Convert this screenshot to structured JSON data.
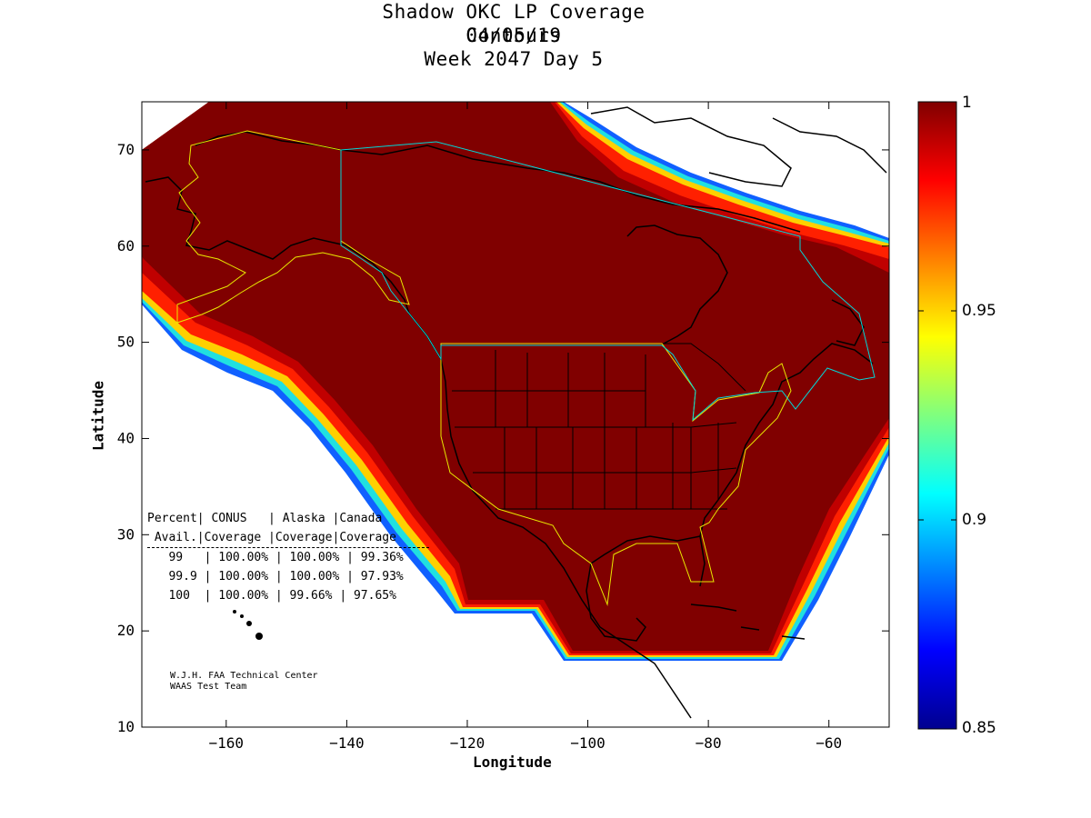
{
  "title": {
    "line1": "Shadow OKC LP Coverage Contours",
    "line2": "04/05/19",
    "line3": "Week 2047 Day 5"
  },
  "axes": {
    "xlabel": "Longitude",
    "ylabel": "Latitude",
    "xlim": [
      -174,
      -50
    ],
    "ylim": [
      10,
      75
    ],
    "xticks": [
      -160,
      -140,
      -120,
      -100,
      -80,
      -60
    ],
    "yticks": [
      10,
      20,
      30,
      40,
      50,
      60,
      70
    ]
  },
  "colorbar": {
    "range": [
      0.85,
      1
    ],
    "ticks": [
      "1",
      "0.95",
      "0.9",
      "0.85"
    ],
    "colormap": "jet"
  },
  "coverage_table": {
    "header1": "Percent| CONUS   | Alaska |Canada",
    "header2": " Avail.|Coverage |Coverage|Coverage",
    "rows": [
      "   99   | 100.00% | 100.00% | 99.36%",
      "   99.9 | 100.00% | 100.00% | 97.93%",
      "   100  | 100.00% | 99.66% | 97.65%"
    ],
    "data": [
      {
        "avail": "99",
        "conus": "100.00%",
        "alaska": "100.00%",
        "canada": "99.36%"
      },
      {
        "avail": "99.9",
        "conus": "100.00%",
        "alaska": "100.00%",
        "canada": "97.93%"
      },
      {
        "avail": "100",
        "conus": "100.00%",
        "alaska": "99.66%",
        "canada": "97.65%"
      }
    ]
  },
  "credit": {
    "line1": "W.J.H. FAA Technical Center",
    "line2": "WAAS Test Team"
  },
  "colors": {
    "coverage_full": "#800000",
    "service_volume_conus_alaska": "#e8e800",
    "service_volume_canada": "#00d8d8"
  }
}
